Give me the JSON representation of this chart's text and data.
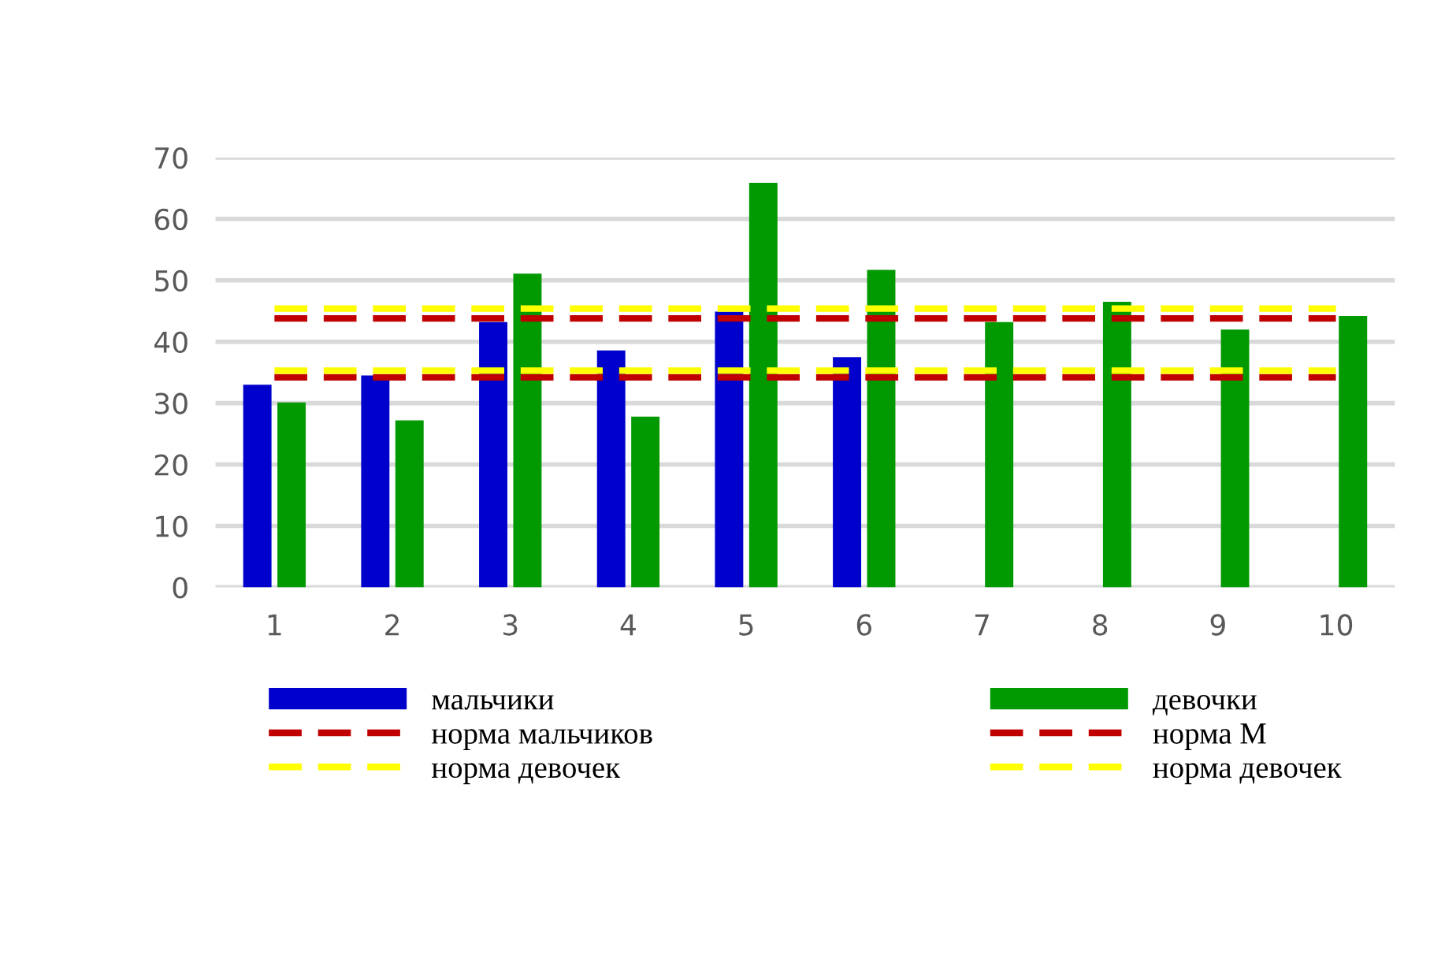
{
  "chart_data": {
    "type": "bar",
    "categories": [
      "1",
      "2",
      "3",
      "4",
      "5",
      "6",
      "7",
      "8",
      "9",
      "10"
    ],
    "series": [
      {
        "name": "мальчики",
        "color": "#0000cc",
        "values": [
          33,
          34.5,
          43.2,
          38.6,
          44.9,
          37.5,
          null,
          null,
          null,
          null
        ]
      },
      {
        "name": "девочки",
        "color": "#009900",
        "values": [
          30.1,
          27.2,
          51.1,
          27.8,
          65.9,
          51.7,
          43.2,
          46.5,
          42.0,
          44.2
        ]
      },
      {
        "name": "норма мальчиков",
        "type": "line",
        "line_style": "dashed",
        "color": "#c00000",
        "values": [
          34.2,
          34.2,
          34.2,
          34.2,
          34.2,
          34.2,
          34.2,
          34.2,
          34.2,
          34.2
        ]
      },
      {
        "name": "норма М",
        "type": "line",
        "line_style": "dashed",
        "color": "#c00000",
        "values": [
          43.8,
          43.8,
          43.8,
          43.8,
          43.8,
          43.8,
          43.8,
          43.8,
          43.8,
          43.8
        ]
      },
      {
        "name": "норма девочек",
        "type": "line",
        "line_style": "dashed",
        "color": "#ffff00",
        "values": [
          35.3,
          35.3,
          35.3,
          35.3,
          35.3,
          35.3,
          35.3,
          35.3,
          35.3,
          35.3
        ]
      },
      {
        "name": "норма девочек",
        "type": "line",
        "line_style": "dashed",
        "color": "#ffff00",
        "values": [
          45.4,
          45.4,
          45.4,
          45.4,
          45.4,
          45.4,
          45.4,
          45.4,
          45.4,
          45.4
        ]
      }
    ],
    "ylim": [
      0,
      70
    ],
    "yticks": [
      0,
      10,
      20,
      30,
      40,
      50,
      60,
      70
    ],
    "grid": "y",
    "legend": "bottom"
  }
}
